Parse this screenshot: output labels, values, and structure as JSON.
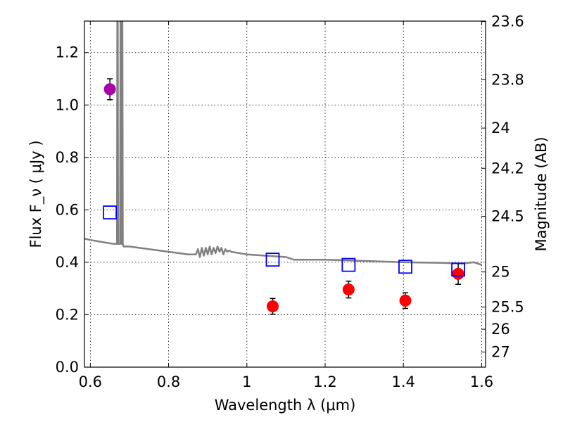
{
  "chart_data": {
    "type": "scatter",
    "title": "",
    "xlabel": "Wavelength  λ (μm)",
    "ylabel": "Flux  F_ν  ( μJy )",
    "ylabel_right": "Magnitude (AB)",
    "xlim": [
      0.585,
      1.61
    ],
    "ylim": [
      0.0,
      1.32
    ],
    "grid": true,
    "x_ticks": [
      0.6,
      0.8,
      1.0,
      1.2,
      1.4,
      1.6
    ],
    "x_tick_labels": [
      "0.6",
      "0.8",
      "1",
      "1.2",
      "1.4",
      "1.6"
    ],
    "y_ticks": [
      0.0,
      0.2,
      0.4,
      0.6,
      0.8,
      1.0,
      1.2
    ],
    "y_tick_labels": [
      "0.0",
      "0.2",
      "0.4",
      "0.6",
      "0.8",
      "1.0",
      "1.2"
    ],
    "right_axis_ticks": [
      {
        "label": "23.6",
        "mag": 23.6
      },
      {
        "label": "23.8",
        "mag": 23.8
      },
      {
        "label": "24",
        "mag": 24.0
      },
      {
        "label": "24.2",
        "mag": 24.2
      },
      {
        "label": "24.5",
        "mag": 24.5
      },
      {
        "label": "25",
        "mag": 25.0
      },
      {
        "label": "25.5",
        "mag": 25.5
      },
      {
        "label": "26",
        "mag": 26.0
      },
      {
        "label": "27",
        "mag": 27.0
      }
    ],
    "series": [
      {
        "kind": "marker-circle",
        "color": "#aa00aa",
        "points": [
          {
            "x": 0.65,
            "y": 1.06,
            "err": 0.04
          }
        ]
      },
      {
        "kind": "marker-circle",
        "color": "#ff0000",
        "points": [
          {
            "x": 1.066,
            "y": 0.232,
            "err": 0.03
          },
          {
            "x": 1.26,
            "y": 0.296,
            "err": 0.032
          },
          {
            "x": 1.405,
            "y": 0.254,
            "err": 0.03
          },
          {
            "x": 1.54,
            "y": 0.356,
            "err": 0.04
          }
        ]
      },
      {
        "kind": "marker-square-open",
        "color": "#0000ff",
        "points": [
          {
            "x": 0.65,
            "y": 0.59
          },
          {
            "x": 1.066,
            "y": 0.41
          },
          {
            "x": 1.26,
            "y": 0.39
          },
          {
            "x": 1.405,
            "y": 0.383
          },
          {
            "x": 1.54,
            "y": 0.372
          }
        ]
      },
      {
        "kind": "line",
        "color": "#808080",
        "x": [
          0.585,
          0.6,
          0.62,
          0.64,
          0.66,
          0.668,
          0.669,
          0.67,
          0.671,
          0.672,
          0.673,
          0.675,
          0.676,
          0.677,
          0.678,
          0.679,
          0.68,
          0.681,
          0.682,
          0.683,
          0.685,
          0.7,
          0.75,
          0.8,
          0.85,
          0.87,
          0.875,
          0.88,
          0.885,
          0.89,
          0.895,
          0.9,
          0.905,
          0.91,
          0.915,
          0.92,
          0.925,
          0.93,
          0.935,
          0.94,
          0.945,
          0.95,
          0.955,
          0.96,
          1.0,
          1.05,
          1.1,
          1.12,
          1.2,
          1.3,
          1.4,
          1.5,
          1.55,
          1.58,
          1.6
        ],
        "y": [
          0.49,
          0.485,
          0.48,
          0.475,
          0.47,
          0.47,
          1.35,
          1.35,
          0.47,
          0.47,
          0.47,
          0.47,
          0.47,
          1.35,
          1.35,
          0.47,
          0.47,
          1.35,
          1.35,
          0.47,
          0.46,
          0.46,
          0.45,
          0.44,
          0.43,
          0.43,
          0.45,
          0.42,
          0.455,
          0.425,
          0.455,
          0.43,
          0.46,
          0.43,
          0.455,
          0.435,
          0.46,
          0.44,
          0.455,
          0.43,
          0.45,
          0.44,
          0.445,
          0.44,
          0.43,
          0.425,
          0.42,
          0.41,
          0.41,
          0.405,
          0.4,
          0.398,
          0.395,
          0.4,
          0.39
        ]
      }
    ]
  }
}
